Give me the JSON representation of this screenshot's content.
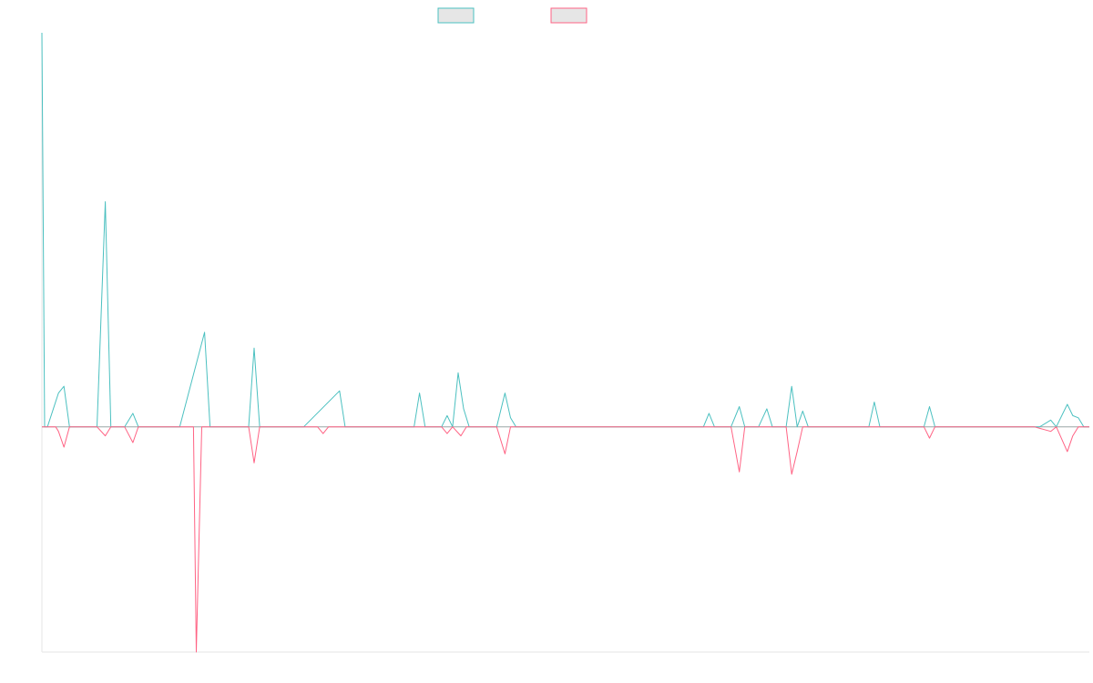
{
  "chart_data": {
    "type": "line",
    "title": "",
    "xlabel": "",
    "ylabel": "",
    "legend_position": "top-center",
    "grid": false,
    "ylim": [
      -100,
      175
    ],
    "zero_line": true,
    "series": [
      {
        "color": "#4bc0c0",
        "points": [
          [
            0,
            175
          ],
          [
            1,
            0
          ],
          [
            2,
            0
          ],
          [
            6,
            15
          ],
          [
            8,
            18
          ],
          [
            10,
            0
          ],
          [
            20,
            0
          ],
          [
            23,
            100
          ],
          [
            25,
            0
          ],
          [
            30,
            0
          ],
          [
            33,
            6
          ],
          [
            35,
            0
          ],
          [
            45,
            0
          ],
          [
            50,
            0
          ],
          [
            59,
            42
          ],
          [
            61,
            0
          ],
          [
            75,
            0
          ],
          [
            77,
            35
          ],
          [
            79,
            0
          ],
          [
            95,
            0
          ],
          [
            108,
            16
          ],
          [
            110,
            0
          ],
          [
            135,
            0
          ],
          [
            137,
            15
          ],
          [
            139,
            0
          ],
          [
            145,
            0
          ],
          [
            147,
            5
          ],
          [
            149,
            0
          ],
          [
            151,
            24
          ],
          [
            153,
            8
          ],
          [
            155,
            0
          ],
          [
            165,
            0
          ],
          [
            168,
            15
          ],
          [
            170,
            4
          ],
          [
            172,
            0
          ],
          [
            240,
            0
          ],
          [
            242,
            6
          ],
          [
            244,
            0
          ],
          [
            250,
            0
          ],
          [
            253,
            9
          ],
          [
            255,
            0
          ],
          [
            260,
            0
          ],
          [
            263,
            8
          ],
          [
            265,
            0
          ],
          [
            270,
            0
          ],
          [
            272,
            18
          ],
          [
            274,
            0
          ],
          [
            276,
            7
          ],
          [
            278,
            0
          ],
          [
            300,
            0
          ],
          [
            302,
            11
          ],
          [
            304,
            0
          ],
          [
            320,
            0
          ],
          [
            322,
            9
          ],
          [
            324,
            0
          ],
          [
            360,
            0
          ],
          [
            362,
            0
          ],
          [
            366,
            3
          ],
          [
            368,
            0
          ],
          [
            372,
            10
          ],
          [
            374,
            5
          ],
          [
            376,
            4
          ],
          [
            378,
            0
          ],
          [
            380,
            0
          ]
        ]
      },
      {
        "color": "#ff6384",
        "points": [
          [
            0,
            0
          ],
          [
            1,
            0
          ],
          [
            5,
            0
          ],
          [
            6,
            -2
          ],
          [
            8,
            -9
          ],
          [
            10,
            0
          ],
          [
            20,
            0
          ],
          [
            23,
            -4
          ],
          [
            25,
            0
          ],
          [
            30,
            0
          ],
          [
            33,
            -7
          ],
          [
            35,
            0
          ],
          [
            50,
            0
          ],
          [
            55,
            0
          ],
          [
            56,
            -100
          ],
          [
            58,
            0
          ],
          [
            75,
            0
          ],
          [
            77,
            -16
          ],
          [
            79,
            0
          ],
          [
            100,
            0
          ],
          [
            102,
            -3
          ],
          [
            104,
            0
          ],
          [
            145,
            0
          ],
          [
            147,
            -3
          ],
          [
            149,
            0
          ],
          [
            152,
            -4
          ],
          [
            154,
            0
          ],
          [
            165,
            0
          ],
          [
            168,
            -12
          ],
          [
            170,
            0
          ],
          [
            250,
            0
          ],
          [
            253,
            -20
          ],
          [
            255,
            0
          ],
          [
            270,
            0
          ],
          [
            272,
            -21
          ],
          [
            274,
            -11
          ],
          [
            276,
            0
          ],
          [
            320,
            0
          ],
          [
            322,
            -5
          ],
          [
            324,
            0
          ],
          [
            360,
            0
          ],
          [
            366,
            -2
          ],
          [
            368,
            0
          ],
          [
            372,
            -11
          ],
          [
            374,
            -4
          ],
          [
            376,
            0
          ],
          [
            380,
            0
          ]
        ]
      }
    ],
    "x_range": [
      0,
      380
    ]
  }
}
